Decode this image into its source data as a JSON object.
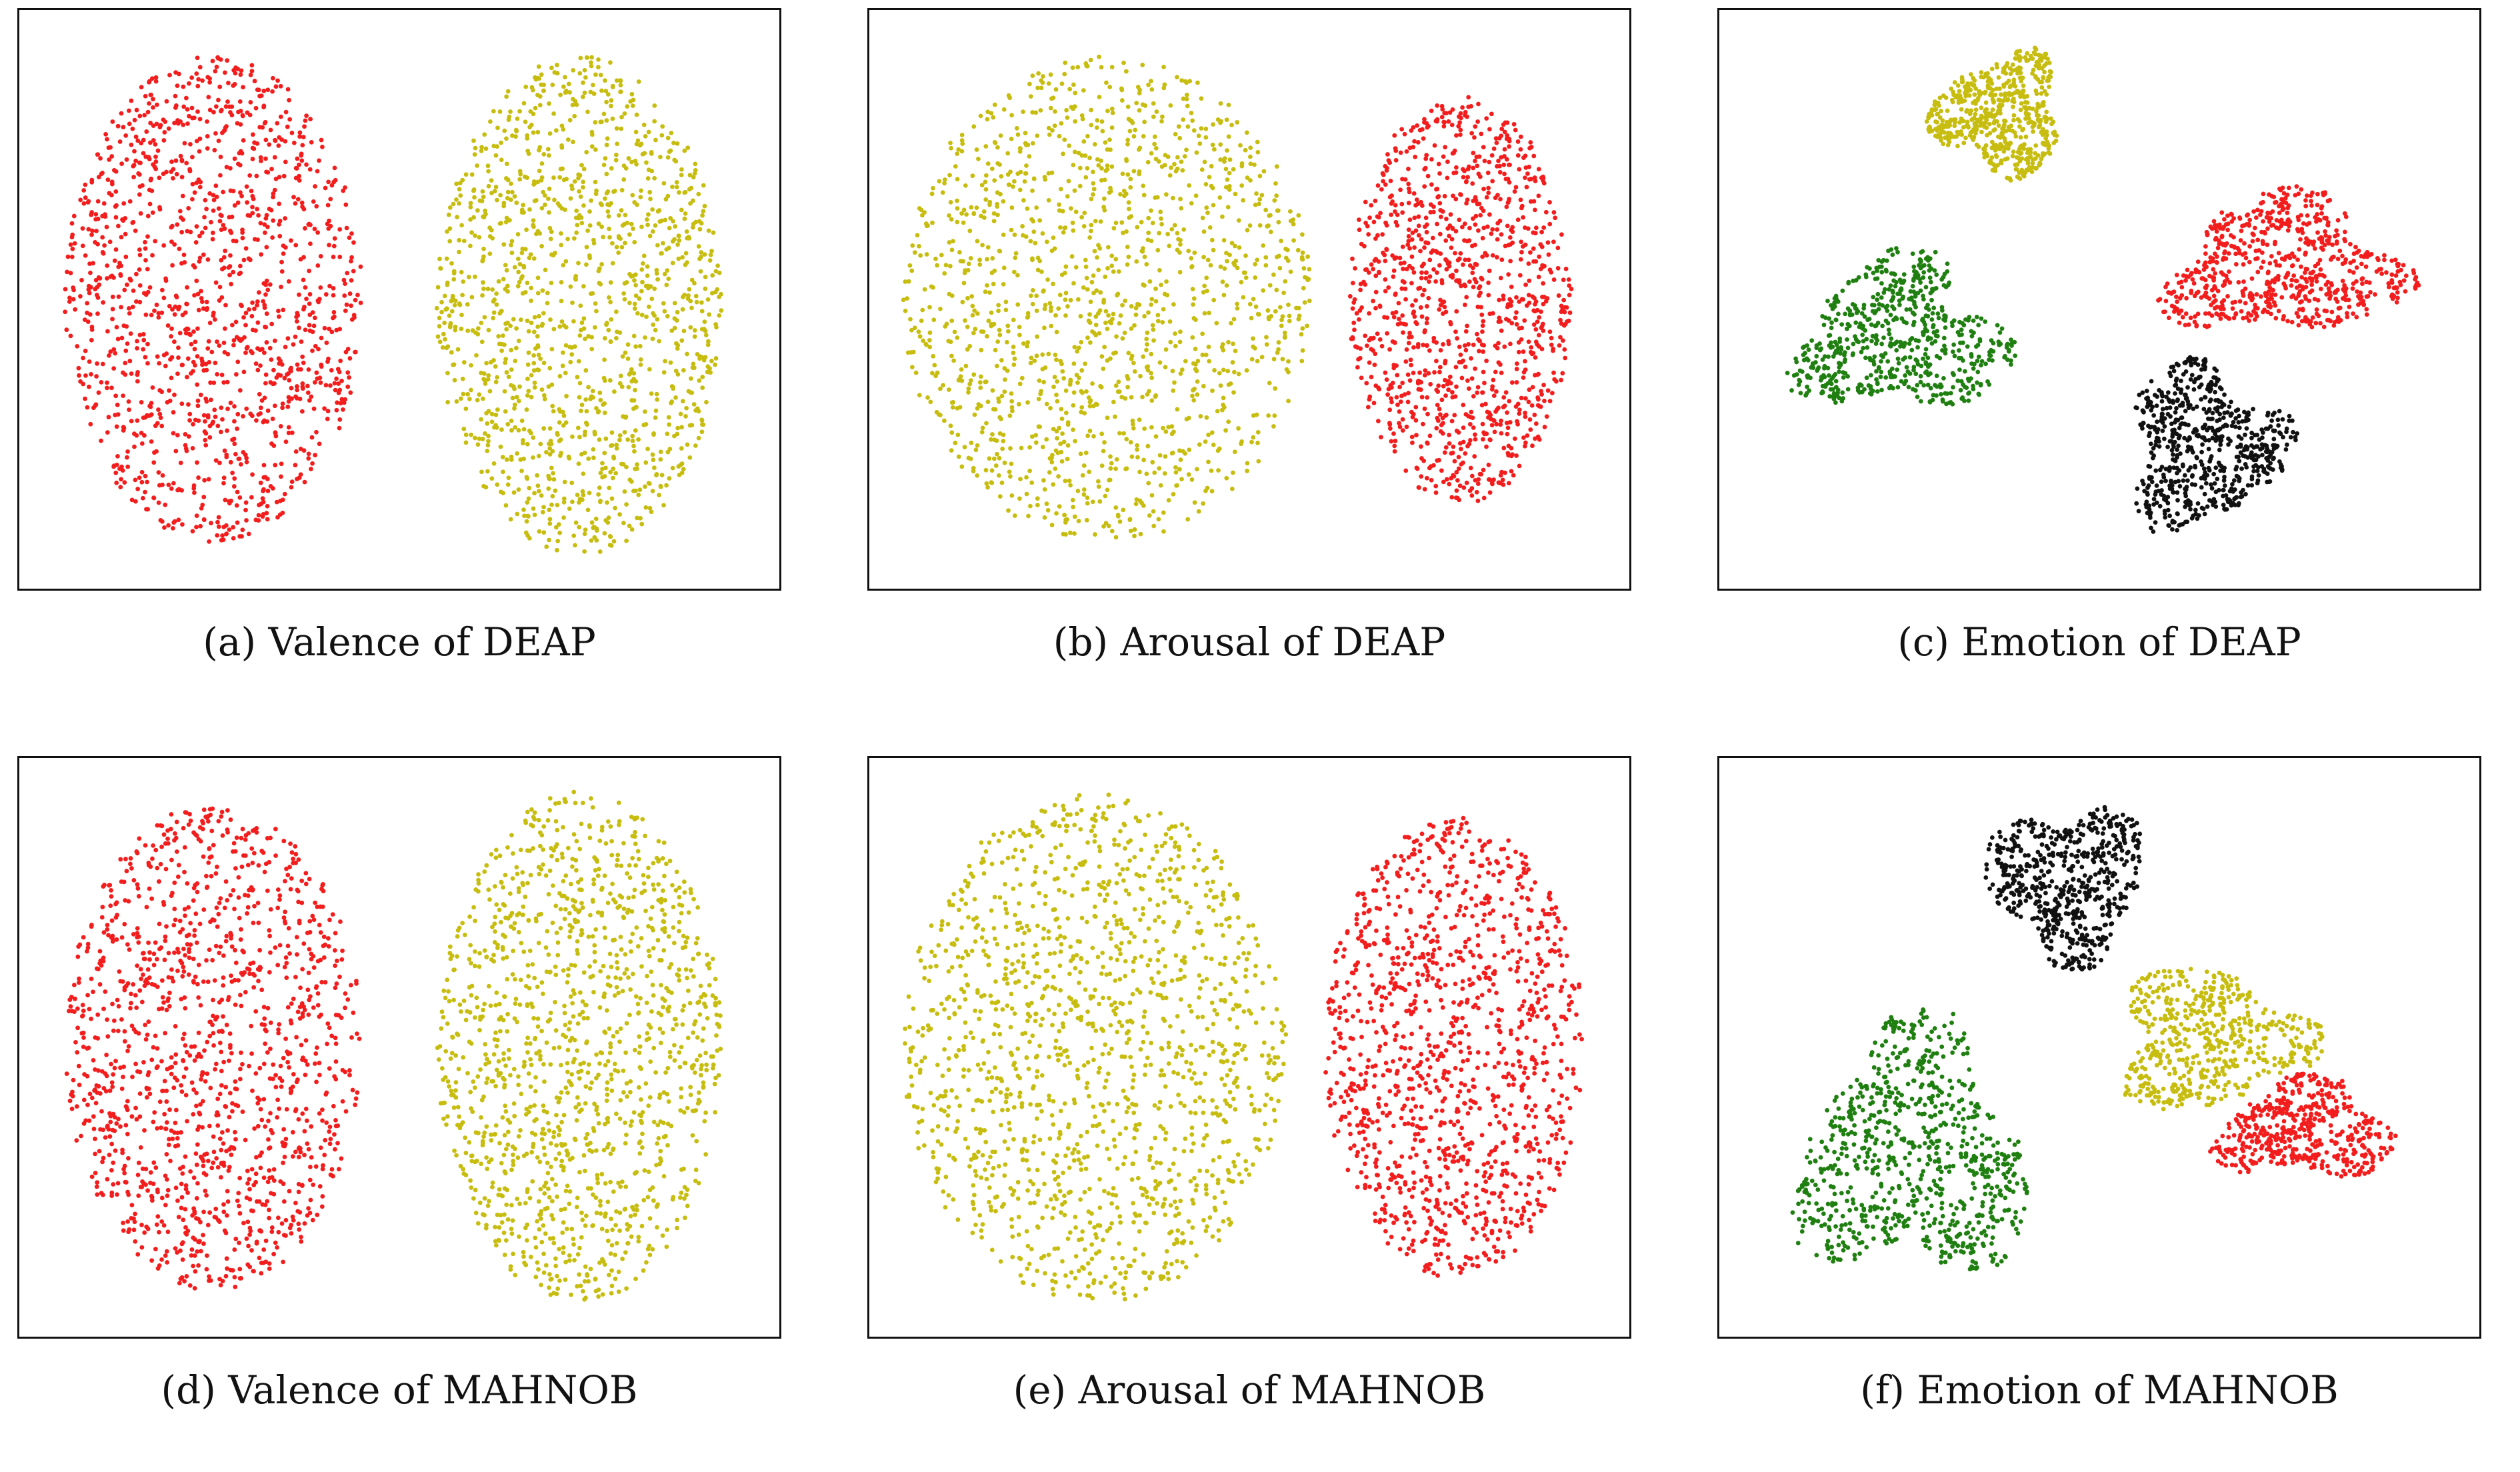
{
  "colors": {
    "red": "#f21d1d",
    "olive": "#c7bd10",
    "green": "#1f7f10",
    "black": "#111111"
  },
  "chart_data": [
    {
      "type": "scatter",
      "caption": "(a) Valence of DEAP",
      "grid": false,
      "axes_visible": false,
      "clusters": [
        {
          "color": "red",
          "shape": "half-disc-left",
          "x": [
            -2.7,
            -0.3
          ],
          "y": [
            -1.9,
            1.9
          ],
          "points": 1300
        },
        {
          "color": "olive",
          "shape": "half-disc-right",
          "x": [
            0.3,
            2.6
          ],
          "y": [
            -2.0,
            1.9
          ],
          "points": 1300
        }
      ]
    },
    {
      "type": "scatter",
      "caption": "(b) Arousal of DEAP",
      "grid": false,
      "axes_visible": false,
      "clusters": [
        {
          "color": "olive",
          "shape": "half-disc-left",
          "x": [
            -2.8,
            0.5
          ],
          "y": [
            -1.9,
            1.9
          ],
          "points": 1400
        },
        {
          "color": "red",
          "shape": "half-disc-right",
          "x": [
            0.8,
            2.6
          ],
          "y": [
            -1.6,
            1.6
          ],
          "points": 1100
        }
      ]
    },
    {
      "type": "scatter",
      "caption": "(c) Emotion of DEAP",
      "grid": false,
      "axes_visible": false,
      "clusters": [
        {
          "color": "olive",
          "x": [
            -1.4,
            -0.2
          ],
          "y": [
            0.9,
            2.0
          ],
          "points": 600
        },
        {
          "color": "red",
          "x": [
            0.4,
            2.6
          ],
          "y": [
            -0.4,
            0.9
          ],
          "points": 700
        },
        {
          "color": "green",
          "x": [
            -2.6,
            -0.6
          ],
          "y": [
            -1.0,
            0.4
          ],
          "points": 650
        },
        {
          "color": "black",
          "x": [
            0.1,
            1.6
          ],
          "y": [
            -1.9,
            -0.4
          ],
          "points": 650
        }
      ]
    },
    {
      "type": "scatter",
      "caption": "(d) Valence of MAHNOB",
      "grid": false,
      "axes_visible": false,
      "clusters": [
        {
          "color": "red",
          "shape": "half-disc-left",
          "x": [
            -2.7,
            -0.3
          ],
          "y": [
            -1.9,
            1.9
          ],
          "points": 1300
        },
        {
          "color": "olive",
          "shape": "half-disc-right",
          "x": [
            0.3,
            2.6
          ],
          "y": [
            -2.0,
            2.0
          ],
          "points": 1300
        }
      ]
    },
    {
      "type": "scatter",
      "caption": "(e) Arousal of MAHNOB",
      "grid": false,
      "axes_visible": false,
      "clusters": [
        {
          "color": "olive",
          "shape": "half-disc-left",
          "x": [
            -2.8,
            0.3
          ],
          "y": [
            -2.0,
            2.0
          ],
          "points": 1400
        },
        {
          "color": "red",
          "shape": "half-disc-right",
          "x": [
            0.6,
            2.7
          ],
          "y": [
            -1.8,
            1.8
          ],
          "points": 1200
        }
      ]
    },
    {
      "type": "scatter",
      "caption": "(f) Emotion of MAHNOB",
      "grid": false,
      "axes_visible": false,
      "clusters": [
        {
          "color": "black",
          "x": [
            -1.0,
            0.5
          ],
          "y": [
            0.6,
            2.0
          ],
          "points": 600
        },
        {
          "color": "olive",
          "x": [
            0.0,
            1.8
          ],
          "y": [
            -0.6,
            0.7
          ],
          "points": 550
        },
        {
          "color": "green",
          "x": [
            -2.6,
            -0.4
          ],
          "y": [
            -2.0,
            0.3
          ],
          "points": 800
        },
        {
          "color": "red",
          "x": [
            0.8,
            2.5
          ],
          "y": [
            -1.1,
            -0.2
          ],
          "points": 500
        }
      ]
    }
  ]
}
